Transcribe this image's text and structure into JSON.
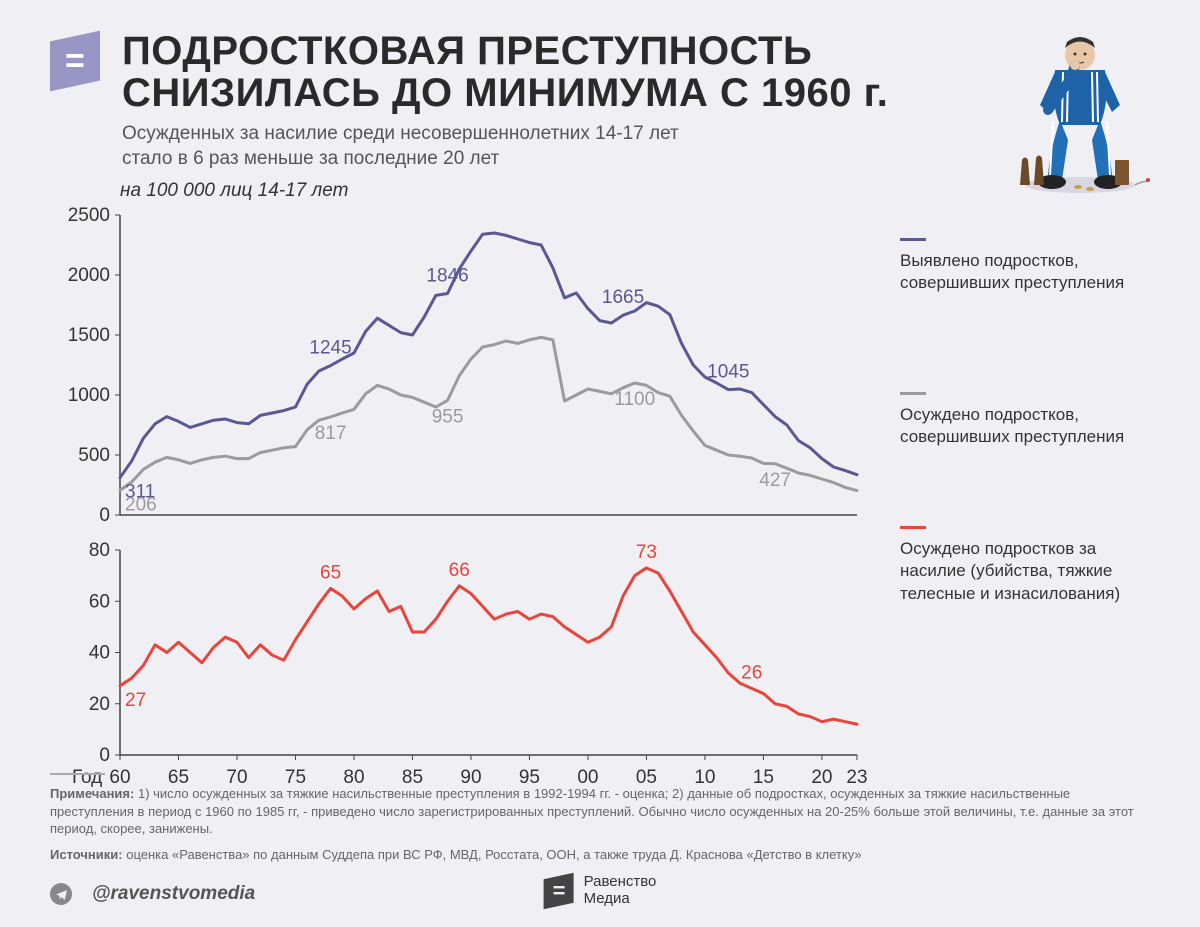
{
  "header": {
    "title_l1": "ПОДРОСТКОВАЯ ПРЕСТУПНОСТЬ",
    "title_l2": "СНИЗИЛАСЬ ДО МИНИМУМА С 1960 г.",
    "subtitle_l1": "Осужденных за насилие среди несовершеннолетних 14-17 лет",
    "subtitle_l2": "стало в 6 раз меньше за последние 20 лет",
    "yaxis_title": "на 100 000 лиц 14-17 лет"
  },
  "palette": {
    "bg": "#f0eff4",
    "text": "#2a2a2a",
    "series_detected": "#5a5892",
    "series_convicted": "#9b9a9d",
    "series_violence": "#e8453c",
    "axis": "#444444"
  },
  "chart_top": {
    "type": "line",
    "x_start": 1960,
    "x_end": 2023,
    "xlabel": "Год",
    "x_ticks": [
      "60",
      "65",
      "70",
      "75",
      "80",
      "85",
      "90",
      "95",
      "00",
      "05",
      "10",
      "15",
      "20",
      "23"
    ],
    "ylim": [
      0,
      2500
    ],
    "ytick_step": 500,
    "line_width": 3,
    "label_fontsize": 19,
    "series": {
      "detected": {
        "color": "#5a5892",
        "y": [
          311,
          450,
          640,
          760,
          820,
          780,
          730,
          760,
          790,
          800,
          770,
          760,
          830,
          850,
          870,
          900,
          1090,
          1200,
          1245,
          1300,
          1350,
          1530,
          1640,
          1580,
          1520,
          1500,
          1650,
          1830,
          1846,
          2050,
          2200,
          2340,
          2350,
          2330,
          2300,
          2270,
          2250,
          2060,
          1810,
          1850,
          1720,
          1620,
          1600,
          1665,
          1700,
          1770,
          1740,
          1670,
          1430,
          1250,
          1150,
          1100,
          1045,
          1050,
          1020,
          920,
          820,
          750,
          620,
          560,
          470,
          400,
          370,
          336
        ],
        "callouts": [
          {
            "year": 1960,
            "val": "311"
          },
          {
            "year": 1978,
            "val": "1245"
          },
          {
            "year": 1988,
            "val": "1846"
          },
          {
            "year": 2003,
            "val": "1665"
          },
          {
            "year": 2012,
            "val": "1045"
          },
          {
            "year": 2023,
            "val": "336"
          }
        ]
      },
      "convicted": {
        "color": "#9b9a9d",
        "y": [
          206,
          275,
          380,
          440,
          480,
          460,
          430,
          460,
          480,
          490,
          470,
          470,
          520,
          540,
          560,
          570,
          710,
          790,
          817,
          850,
          880,
          1010,
          1080,
          1050,
          1000,
          980,
          940,
          900,
          955,
          1160,
          1300,
          1400,
          1420,
          1450,
          1430,
          1460,
          1480,
          1460,
          950,
          1000,
          1050,
          1030,
          1010,
          1060,
          1100,
          1080,
          1020,
          990,
          830,
          700,
          580,
          540,
          500,
          490,
          475,
          430,
          427,
          390,
          350,
          330,
          300,
          270,
          230,
          204
        ],
        "callouts": [
          {
            "year": 1960,
            "val": "206"
          },
          {
            "year": 1978,
            "val": "817"
          },
          {
            "year": 1988,
            "val": "955"
          },
          {
            "year": 2004,
            "val": "1100"
          },
          {
            "year": 2016,
            "val": "427"
          },
          {
            "year": 2023,
            "val": "204"
          }
        ]
      }
    }
  },
  "chart_bottom": {
    "type": "line",
    "x_start": 1960,
    "x_end": 2023,
    "ylim": [
      0,
      80
    ],
    "ytick_step": 20,
    "line_width": 3,
    "series": {
      "violence": {
        "color": "#e8453c",
        "y": [
          27,
          30,
          35,
          43,
          40,
          44,
          40,
          36,
          42,
          46,
          44,
          38,
          43,
          39,
          37,
          45,
          52,
          59,
          65,
          62,
          57,
          61,
          64,
          56,
          58,
          48,
          48,
          53,
          60,
          66,
          63,
          58,
          53,
          55,
          56,
          53,
          55,
          54,
          50,
          47,
          44,
          46,
          50,
          62,
          70,
          73,
          71,
          64,
          56,
          48,
          43,
          38,
          32,
          28,
          26,
          24,
          20,
          19,
          16,
          15,
          13,
          14,
          13,
          12
        ],
        "callouts": [
          {
            "year": 1960,
            "val": "27"
          },
          {
            "year": 1978,
            "val": "65"
          },
          {
            "year": 1989,
            "val": "66"
          },
          {
            "year": 2005,
            "val": "73"
          },
          {
            "year": 2014,
            "val": "26"
          },
          {
            "year": 2023,
            "val": "12"
          }
        ]
      }
    }
  },
  "legend": {
    "detected": "Выявлено подростков, совершивших преступления",
    "convicted": "Осуждено подростков, совершивших преступления",
    "violence": "Осуждено подростков за насилие (убийства, тяжкие телесные и изнасилования)"
  },
  "footer": {
    "notes_label": "Примечания:",
    "notes": "1) число осужденных за тяжкие насильственные преступления в 1992-1994 гг. - оценка; 2) данные об подростках, осужденных за тяжкие насильственные преступления в период с 1960 по 1985 гг, - приведено число зарегистрированных преступлений. Обычно число осужденных на 20-25% больше этой величины, т.е. данные за этот период, скорее, занижены.",
    "sources_label": "Источники:",
    "sources": "оценка «Равенства» по данным Суддепа при ВС РФ, МВД, Росстата, ООН, а также труда Д. Краснова «Детство в клетку»",
    "handle": "@ravenstvomedia",
    "brand_l1": "Равенство",
    "brand_l2": "Медиа"
  }
}
